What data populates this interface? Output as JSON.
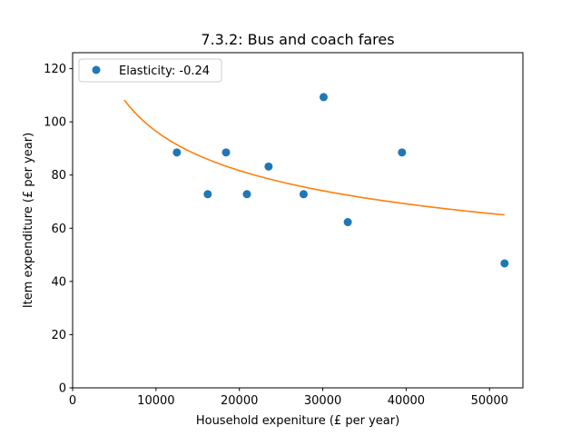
{
  "chart_data": {
    "type": "scatter",
    "title": "7.3.2: Bus and coach fares",
    "xlabel": "Household expeniture (£ per year)",
    "ylabel": "Item expenditure (£ per year)",
    "xlim": [
      0,
      54000
    ],
    "ylim": [
      0,
      126
    ],
    "xticks": [
      0,
      10000,
      20000,
      30000,
      40000,
      50000
    ],
    "yticks": [
      0,
      20,
      40,
      60,
      80,
      100,
      120
    ],
    "grid": false,
    "legend_position": "top-left",
    "series": [
      {
        "name": "Elasticity: -0.24",
        "kind": "scatter",
        "color": "#1f77b4",
        "points": [
          {
            "x": 12500,
            "y": 88.5
          },
          {
            "x": 16200,
            "y": 72.8
          },
          {
            "x": 18400,
            "y": 88.5
          },
          {
            "x": 20900,
            "y": 72.8
          },
          {
            "x": 23500,
            "y": 83.2
          },
          {
            "x": 27700,
            "y": 72.8
          },
          {
            "x": 30100,
            "y": 109.3
          },
          {
            "x": 33000,
            "y": 62.3
          },
          {
            "x": 39500,
            "y": 88.5
          },
          {
            "x": 51800,
            "y": 46.8
          }
        ]
      },
      {
        "kind": "fitted-curve",
        "color": "#ff7f0e",
        "model": "power",
        "elasticity": -0.24,
        "x_range": [
          6200,
          51800
        ],
        "y_at_start": 108.2,
        "y_at_end": 64.5
      }
    ]
  }
}
